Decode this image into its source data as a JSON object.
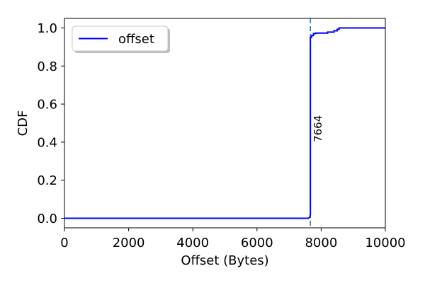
{
  "chart_data": {
    "type": "line",
    "xlabel": "Offset (Bytes)",
    "ylabel": "CDF",
    "xlim": [
      0,
      10000
    ],
    "ylim": [
      -0.05,
      1.05
    ],
    "xticks": [
      0,
      2000,
      4000,
      6000,
      8000,
      10000
    ],
    "xtick_labels": [
      "0",
      "2000",
      "4000",
      "6000",
      "8000",
      "10000"
    ],
    "yticks": [
      0.0,
      0.2,
      0.4,
      0.6,
      0.8,
      1.0
    ],
    "ytick_labels": [
      "0.0",
      "0.2",
      "0.4",
      "0.6",
      "0.8",
      "1.0"
    ],
    "grid": false,
    "legend": {
      "position": "top-left"
    },
    "series": [
      {
        "name": "offset",
        "color": "#0000ff",
        "x": [
          0,
          7600,
          7640,
          7664,
          7664,
          7700,
          7700,
          7760,
          7760,
          7830,
          7830,
          8200,
          8200,
          8400,
          8400,
          8500,
          8500,
          8560,
          8560,
          10000
        ],
        "y": [
          0.0,
          0.0,
          0.005,
          0.02,
          0.95,
          0.95,
          0.96,
          0.96,
          0.97,
          0.97,
          0.973,
          0.973,
          0.978,
          0.978,
          0.985,
          0.985,
          0.993,
          0.993,
          1.0,
          1.0
        ]
      }
    ],
    "reference_line": {
      "x": 7664,
      "color": "#1f77b4",
      "style": "dashed",
      "label": "7664",
      "label_y": 0.4
    }
  }
}
